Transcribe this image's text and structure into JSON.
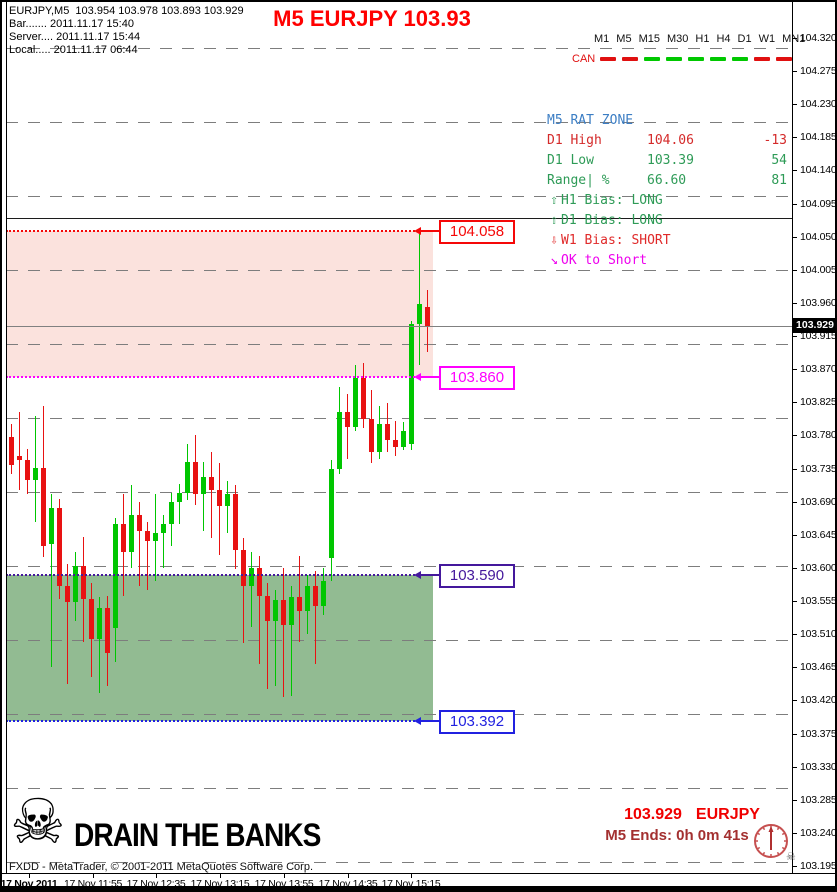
{
  "header": {
    "symbol_line": "EURJPY,M5  103.954 103.978 103.893 103.929",
    "bar_line": "Bar....... 2011.11.17 15:40",
    "server_line": "Server.... 2011.11.17 15:44",
    "local_line": "Local..... 2011.11.17 06:44"
  },
  "title": "M5 EURJPY 103.93",
  "toolbar": {
    "timeframes": [
      "M1",
      "M5",
      "M15",
      "M30",
      "H1",
      "H4",
      "D1",
      "W1",
      "MN1"
    ],
    "can_label": "CAN",
    "can_colors": [
      "red",
      "red",
      "green",
      "green",
      "green",
      "green",
      "green",
      "red",
      "red"
    ]
  },
  "rat_panel": {
    "title": "M5 RAT ZONE",
    "title_color": "#3c7ec4",
    "rows": [
      {
        "label": "D1 High",
        "value": "104.06",
        "num": "-13",
        "color": "#d42a2a"
      },
      {
        "label": "D1 Low",
        "value": "103.39",
        "num": "54",
        "color": "#2e9b57"
      },
      {
        "label": "Range| %",
        "value": "66.60",
        "num": "81",
        "color": "#2e9b57"
      }
    ],
    "bias": [
      {
        "icon": "⇧",
        "text": "H1 Bias: LONG",
        "color": "#2e9b57"
      },
      {
        "icon": "⇧",
        "text": "D1 Bias: LONG",
        "color": "#2e9b57"
      },
      {
        "icon": "⇩",
        "text": "W1 Bias: SHORT",
        "color": "#e02a2a"
      },
      {
        "icon": "↘",
        "text": "OK to Short",
        "color": "#ee00ee"
      }
    ]
  },
  "chart_data": {
    "type": "candlestick",
    "symbol": "EURJPY",
    "period": "M5",
    "price_axis": [
      "104.320",
      "104.275",
      "104.230",
      "104.185",
      "104.140",
      "104.095",
      "104.050",
      "104.005",
      "103.960",
      "103.915",
      "103.870",
      "103.825",
      "103.780",
      "103.735",
      "103.690",
      "103.645",
      "103.600",
      "103.555",
      "103.510",
      "103.465",
      "103.420",
      "103.375",
      "103.330",
      "103.285",
      "103.240",
      "103.195"
    ],
    "time_axis": [
      "17 Nov 2011",
      "17 Nov 11:55",
      "17 Nov 12:35",
      "17 Nov 13:15",
      "17 Nov 13:55",
      "17 Nov 14:35",
      "17 Nov 15:15"
    ],
    "ylim": [
      103.195,
      104.32
    ],
    "grid": "horizontal-dashed",
    "current_price": {
      "label": "103.929",
      "price": 103.929,
      "line_color": "#808080"
    },
    "solid_line_price": 104.075,
    "zones": [
      {
        "name": "sell-zone",
        "top": 104.058,
        "bottom": 103.86,
        "color": "#fbe2dd"
      },
      {
        "name": "buy-zone",
        "top": 103.59,
        "bottom": 103.392,
        "color": "#92bb92"
      }
    ],
    "levels": [
      {
        "label": "104.058",
        "price": 104.058,
        "color": "#f50808"
      },
      {
        "label": "103.860",
        "price": 103.86,
        "color": "#ff00ff"
      },
      {
        "label": "103.590",
        "price": 103.59,
        "color": "#44189c"
      },
      {
        "label": "103.392",
        "price": 103.392,
        "color": "#2121e0"
      }
    ],
    "colors": {
      "up": "#00c600",
      "down": "#e81212"
    },
    "candles": [
      {
        "o": 103.778,
        "h": 103.795,
        "l": 103.728,
        "c": 103.74
      },
      {
        "o": 103.752,
        "h": 103.812,
        "l": 103.706,
        "c": 103.746
      },
      {
        "o": 103.746,
        "h": 103.762,
        "l": 103.7,
        "c": 103.72
      },
      {
        "o": 103.72,
        "h": 103.806,
        "l": 103.662,
        "c": 103.736
      },
      {
        "o": 103.736,
        "h": 103.82,
        "l": 103.615,
        "c": 103.63
      },
      {
        "o": 103.632,
        "h": 103.7,
        "l": 103.466,
        "c": 103.682
      },
      {
        "o": 103.682,
        "h": 103.694,
        "l": 103.558,
        "c": 103.576
      },
      {
        "o": 103.576,
        "h": 103.606,
        "l": 103.442,
        "c": 103.554
      },
      {
        "o": 103.554,
        "h": 103.622,
        "l": 103.528,
        "c": 103.602
      },
      {
        "o": 103.602,
        "h": 103.642,
        "l": 103.5,
        "c": 103.558
      },
      {
        "o": 103.558,
        "h": 103.58,
        "l": 103.452,
        "c": 103.504
      },
      {
        "o": 103.504,
        "h": 103.56,
        "l": 103.43,
        "c": 103.546
      },
      {
        "o": 103.546,
        "h": 103.562,
        "l": 103.44,
        "c": 103.484
      },
      {
        "o": 103.518,
        "h": 103.668,
        "l": 103.472,
        "c": 103.66
      },
      {
        "o": 103.66,
        "h": 103.7,
        "l": 103.562,
        "c": 103.622
      },
      {
        "o": 103.622,
        "h": 103.712,
        "l": 103.6,
        "c": 103.672
      },
      {
        "o": 103.672,
        "h": 103.69,
        "l": 103.576,
        "c": 103.65
      },
      {
        "o": 103.65,
        "h": 103.662,
        "l": 103.57,
        "c": 103.636
      },
      {
        "o": 103.636,
        "h": 103.7,
        "l": 103.582,
        "c": 103.648
      },
      {
        "o": 103.648,
        "h": 103.672,
        "l": 103.6,
        "c": 103.66
      },
      {
        "o": 103.66,
        "h": 103.702,
        "l": 103.63,
        "c": 103.69
      },
      {
        "o": 103.69,
        "h": 103.714,
        "l": 103.66,
        "c": 103.702
      },
      {
        "o": 103.702,
        "h": 103.768,
        "l": 103.692,
        "c": 103.744
      },
      {
        "o": 103.744,
        "h": 103.78,
        "l": 103.686,
        "c": 103.7
      },
      {
        "o": 103.7,
        "h": 103.744,
        "l": 103.65,
        "c": 103.724
      },
      {
        "o": 103.724,
        "h": 103.758,
        "l": 103.64,
        "c": 103.706
      },
      {
        "o": 103.706,
        "h": 103.742,
        "l": 103.618,
        "c": 103.684
      },
      {
        "o": 103.684,
        "h": 103.718,
        "l": 103.648,
        "c": 103.7
      },
      {
        "o": 103.7,
        "h": 103.712,
        "l": 103.598,
        "c": 103.624
      },
      {
        "o": 103.624,
        "h": 103.64,
        "l": 103.498,
        "c": 103.576
      },
      {
        "o": 103.576,
        "h": 103.622,
        "l": 103.52,
        "c": 103.6
      },
      {
        "o": 103.6,
        "h": 103.616,
        "l": 103.47,
        "c": 103.562
      },
      {
        "o": 103.562,
        "h": 103.58,
        "l": 103.436,
        "c": 103.528
      },
      {
        "o": 103.528,
        "h": 103.57,
        "l": 103.44,
        "c": 103.556
      },
      {
        "o": 103.556,
        "h": 103.6,
        "l": 103.424,
        "c": 103.522
      },
      {
        "o": 103.522,
        "h": 103.576,
        "l": 103.426,
        "c": 103.56
      },
      {
        "o": 103.56,
        "h": 103.616,
        "l": 103.5,
        "c": 103.542
      },
      {
        "o": 103.542,
        "h": 103.59,
        "l": 103.51,
        "c": 103.576
      },
      {
        "o": 103.576,
        "h": 103.596,
        "l": 103.47,
        "c": 103.548
      },
      {
        "o": 103.548,
        "h": 103.6,
        "l": 103.536,
        "c": 103.582
      },
      {
        "o": 103.614,
        "h": 103.746,
        "l": 103.582,
        "c": 103.734
      },
      {
        "o": 103.734,
        "h": 103.846,
        "l": 103.728,
        "c": 103.812
      },
      {
        "o": 103.812,
        "h": 103.836,
        "l": 103.748,
        "c": 103.792
      },
      {
        "o": 103.792,
        "h": 103.876,
        "l": 103.786,
        "c": 103.858
      },
      {
        "o": 103.858,
        "h": 103.878,
        "l": 103.79,
        "c": 103.802
      },
      {
        "o": 103.802,
        "h": 103.842,
        "l": 103.742,
        "c": 103.758
      },
      {
        "o": 103.758,
        "h": 103.82,
        "l": 103.748,
        "c": 103.796
      },
      {
        "o": 103.796,
        "h": 103.824,
        "l": 103.758,
        "c": 103.774
      },
      {
        "o": 103.774,
        "h": 103.8,
        "l": 103.752,
        "c": 103.764
      },
      {
        "o": 103.764,
        "h": 103.798,
        "l": 103.76,
        "c": 103.786
      },
      {
        "o": 103.768,
        "h": 103.936,
        "l": 103.76,
        "c": 103.932
      },
      {
        "o": 103.932,
        "h": 104.058,
        "l": 103.876,
        "c": 103.958
      },
      {
        "o": 103.954,
        "h": 103.978,
        "l": 103.893,
        "c": 103.929
      }
    ]
  },
  "footer": {
    "copyright": "FXDD - MetaTrader, © 2001-2011 MetaQuotes Software Corp.",
    "skull_glyph": "☠",
    "brand": "DRAIN THE BANKS",
    "status_price": "103.929",
    "status_symbol": "EURJPY",
    "status_ends": "M5 Ends: 0h 0m 41s",
    "clock_skull_glyph": "☠"
  }
}
